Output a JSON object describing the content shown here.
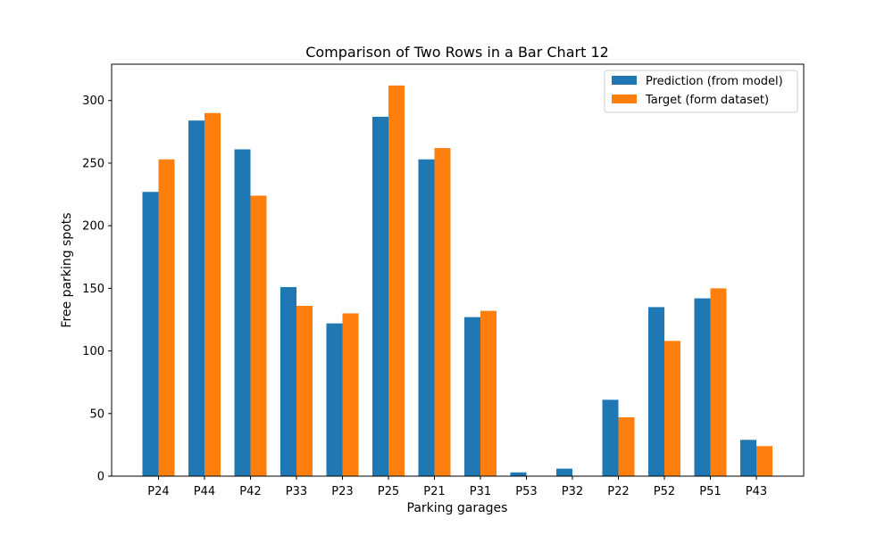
{
  "chart_data": {
    "type": "bar",
    "title": "Comparison of Two Rows in a Bar Chart 12",
    "xlabel": "Parking garages",
    "ylabel": "Free parking spots",
    "ylim": [
      0,
      329
    ],
    "yticks": [
      0,
      50,
      100,
      150,
      200,
      250,
      300
    ],
    "categories": [
      "P24",
      "P44",
      "P42",
      "P33",
      "P23",
      "P25",
      "P21",
      "P31",
      "P53",
      "P32",
      "P22",
      "P52",
      "P51",
      "P43"
    ],
    "series": [
      {
        "name": "Prediction (from model)",
        "color": "#1f77b4",
        "values": [
          227,
          284,
          261,
          151,
          122,
          287,
          253,
          127,
          3,
          6,
          61,
          135,
          142,
          29
        ]
      },
      {
        "name": "Target (form dataset)",
        "color": "#ff7f0e",
        "values": [
          253,
          290,
          224,
          136,
          130,
          312,
          262,
          132,
          0,
          0,
          47,
          108,
          150,
          24
        ]
      }
    ],
    "grid": false,
    "legend_position": "top-right"
  }
}
